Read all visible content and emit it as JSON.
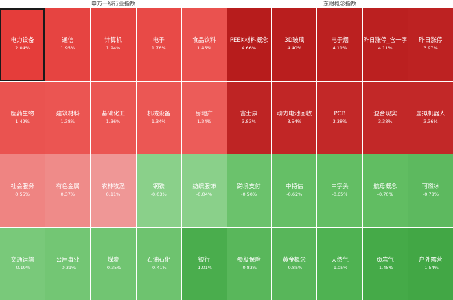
{
  "left": {
    "title": "申万一级行业指数",
    "cells": [
      {
        "name": "电力设备",
        "pct": "2.04%",
        "color": "#e53d3a"
      },
      {
        "name": "通信",
        "pct": "1.95%",
        "color": "#e64441"
      },
      {
        "name": "计算机",
        "pct": "1.94%",
        "color": "#e64441"
      },
      {
        "name": "电子",
        "pct": "1.76%",
        "color": "#e84a47"
      },
      {
        "name": "食品饮料",
        "pct": "1.45%",
        "color": "#ea524f"
      },
      {
        "name": "医药生物",
        "pct": "1.42%",
        "color": "#ea5350"
      },
      {
        "name": "建筑材料",
        "pct": "1.38%",
        "color": "#eb5552"
      },
      {
        "name": "基础化工",
        "pct": "1.36%",
        "color": "#eb5653"
      },
      {
        "name": "机械设备",
        "pct": "1.34%",
        "color": "#eb5754"
      },
      {
        "name": "房地产",
        "pct": "1.24%",
        "color": "#ec5c59"
      },
      {
        "name": "社会服务",
        "pct": "0.55%",
        "color": "#ef8482"
      },
      {
        "name": "有色金属",
        "pct": "0.37%",
        "color": "#ef8b89"
      },
      {
        "name": "农林牧渔",
        "pct": "0.11%",
        "color": "#ef9796"
      },
      {
        "name": "钢铁",
        "pct": "-0.03%",
        "color": "#8ad08a"
      },
      {
        "name": "纺织服饰",
        "pct": "-0.04%",
        "color": "#8ad08a"
      },
      {
        "name": "交通运输",
        "pct": "-0.19%",
        "color": "#79c97a"
      },
      {
        "name": "公用事业",
        "pct": "-0.31%",
        "color": "#73c674"
      },
      {
        "name": "煤炭",
        "pct": "-0.35%",
        "color": "#71c572"
      },
      {
        "name": "石油石化",
        "pct": "-0.41%",
        "color": "#6ec36f"
      },
      {
        "name": "银行",
        "pct": "-1.01%",
        "color": "#4aad4d"
      }
    ]
  },
  "right": {
    "title": "东财概念指数",
    "cells": [
      {
        "name": "PEEK材料概念",
        "pct": "4.66%",
        "color": "#b71c1c"
      },
      {
        "name": "3D玻璃",
        "pct": "4.40%",
        "color": "#b91e1e"
      },
      {
        "name": "电子烟",
        "pct": "4.11%",
        "color": "#bb2020"
      },
      {
        "name": "昨日涨停_含一字",
        "pct": "4.11%",
        "color": "#bb2020"
      },
      {
        "name": "昨日涨停",
        "pct": "3.97%",
        "color": "#bd2222"
      },
      {
        "name": "富士康",
        "pct": "3.83%",
        "color": "#be2424"
      },
      {
        "name": "动力电池回收",
        "pct": "3.54%",
        "color": "#c12626"
      },
      {
        "name": "PCB",
        "pct": "3.38%",
        "color": "#c22828"
      },
      {
        "name": "混合现实",
        "pct": "3.38%",
        "color": "#c22828"
      },
      {
        "name": "虚拟机器人",
        "pct": "3.36%",
        "color": "#c22828"
      },
      {
        "name": "跨境支付",
        "pct": "-0.50%",
        "color": "#6bc26c"
      },
      {
        "name": "中特估",
        "pct": "-0.62%",
        "color": "#65bf66"
      },
      {
        "name": "中字头",
        "pct": "-0.65%",
        "color": "#63be64"
      },
      {
        "name": "航母概念",
        "pct": "-0.70%",
        "color": "#61bd62"
      },
      {
        "name": "可燃冰",
        "pct": "-0.78%",
        "color": "#5db95f"
      },
      {
        "name": "参股保险",
        "pct": "-0.83%",
        "color": "#59b75b"
      },
      {
        "name": "黄金概念",
        "pct": "-0.85%",
        "color": "#58b65a"
      },
      {
        "name": "天然气",
        "pct": "-1.05%",
        "color": "#4fb252"
      },
      {
        "name": "页岩气",
        "pct": "-1.45%",
        "color": "#45aa48"
      },
      {
        "name": "户外露营",
        "pct": "-1.54%",
        "color": "#42a745"
      }
    ]
  }
}
